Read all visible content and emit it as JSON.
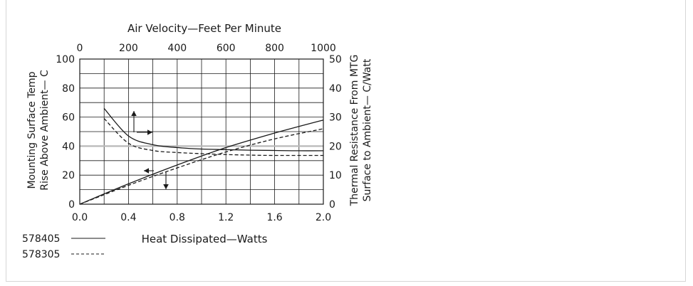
{
  "chart_data": {
    "type": "line",
    "top_axis": {
      "label": "Air Velocity—Feet Per Minute",
      "ticks": [
        "0",
        "200",
        "400",
        "600",
        "800",
        "1000"
      ],
      "range": [
        0,
        1000
      ]
    },
    "bottom_axis": {
      "label": "Heat Dissipated—Watts",
      "ticks": [
        "0.0",
        "0.4",
        "0.8",
        "1.2",
        "1.6",
        "2.0"
      ],
      "range": [
        0,
        2.0
      ]
    },
    "left_axis": {
      "label_line1": "Mounting Surface Temp",
      "label_line2": "Rise Above Ambient— C",
      "ticks": [
        "0",
        "20",
        "40",
        "60",
        "80",
        "100"
      ],
      "range": [
        0,
        100
      ]
    },
    "right_axis": {
      "label_line1": "Thermal Resistance From MTG",
      "label_line2": "Surface to Ambient— C/Watt",
      "ticks": [
        "0",
        "10",
        "20",
        "30",
        "40",
        "50"
      ],
      "range": [
        0,
        50
      ]
    },
    "grid": true,
    "series": [
      {
        "name": "578405",
        "style": "solid",
        "temp_rise_vs_watts": {
          "x": [
            0.0,
            0.4,
            0.8,
            1.2,
            1.6,
            2.0
          ],
          "y": [
            0,
            14,
            27,
            39,
            49,
            58
          ]
        },
        "thermal_resistance_vs_velocity": {
          "x": [
            100,
            200,
            300,
            400,
            500,
            600,
            700,
            800,
            900,
            1000
          ],
          "y": [
            33,
            23.5,
            20.5,
            19.5,
            19,
            18.8,
            18.6,
            18.5,
            18.4,
            18.4
          ]
        }
      },
      {
        "name": "578305",
        "style": "dashed",
        "temp_rise_vs_watts": {
          "x": [
            0.0,
            0.4,
            0.8,
            1.2,
            1.6,
            2.0
          ],
          "y": [
            0,
            13,
            25,
            36,
            45,
            52
          ]
        },
        "thermal_resistance_vs_velocity": {
          "x": [
            100,
            200,
            300,
            400,
            500,
            600,
            700,
            800,
            900,
            1000
          ],
          "y": [
            29.5,
            21,
            18.5,
            17.8,
            17.4,
            17.1,
            16.9,
            16.8,
            16.8,
            16.8
          ]
        }
      }
    ]
  },
  "legend": [
    {
      "label": "578405",
      "style": "solid"
    },
    {
      "label": "578305",
      "style": "dashed"
    }
  ],
  "colors": {
    "line": "#1a1a1a",
    "grid": "#1a1a1a",
    "highlight": "#b8b8b8",
    "frame": "#d6d6d6"
  }
}
